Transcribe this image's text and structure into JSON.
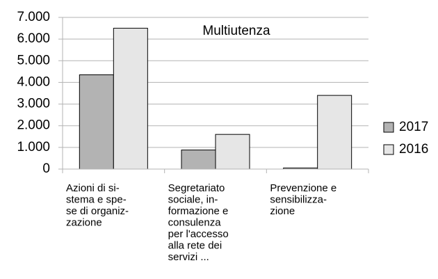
{
  "chart_data": {
    "type": "bar",
    "title": "Multiutenza",
    "categories": [
      [
        "Azioni di si-",
        "stema e spe-",
        "se di organiz-",
        "zazione"
      ],
      [
        "Segretariato",
        "sociale, in-",
        "formazione e",
        "consulenza",
        "per l'accesso",
        "alla rete dei",
        "servizi ..."
      ],
      [
        "Prevenzione e",
        "sensibilizza-",
        "zione"
      ]
    ],
    "series": [
      {
        "name": "2017",
        "color": "#b3b3b3",
        "values": [
          4350,
          880,
          50
        ]
      },
      {
        "name": "2016",
        "color": "#e6e6e6",
        "values": [
          6500,
          1600,
          3400
        ]
      }
    ],
    "ylim": [
      0,
      7000
    ],
    "yticks": [
      0,
      {
        "value": 1000,
        "label": "1.000"
      },
      {
        "value": 2000,
        "label": "2.000"
      },
      {
        "value": 3000,
        "label": "3.000"
      },
      {
        "value": 4000,
        "label": "4.000"
      },
      {
        "value": 5000,
        "label": "5.000"
      },
      {
        "value": 6000,
        "label": "6.000"
      },
      {
        "value": 7000,
        "label": "7.000"
      }
    ],
    "grid": true,
    "legend": "right"
  }
}
